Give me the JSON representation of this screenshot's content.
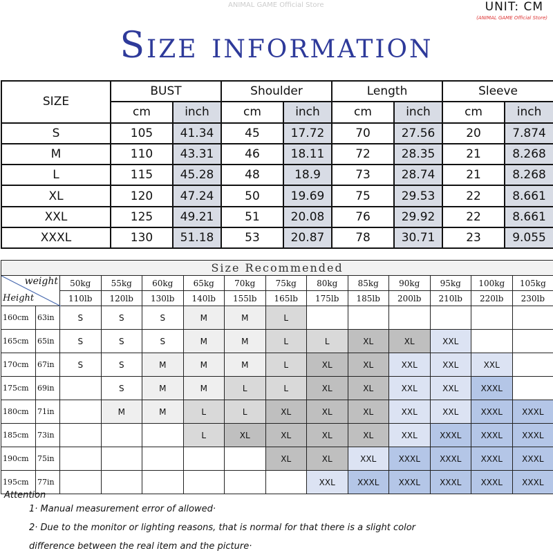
{
  "title": "Size information",
  "watermark": "ANIMAL GAME Official Store",
  "unit": "UNIT: CM",
  "store": "(ANIMAL GAME Official Store)",
  "size_table": {
    "size_header": "SIZE",
    "groups": [
      "BUST",
      "Shoulder",
      "Length",
      "Sleeve"
    ],
    "units": [
      "cm",
      "inch"
    ],
    "rows": [
      [
        "S",
        "105",
        "41.34",
        "45",
        "17.72",
        "70",
        "27.56",
        "20",
        "7.874"
      ],
      [
        "M",
        "110",
        "43.31",
        "46",
        "18.11",
        "72",
        "28.35",
        "21",
        "8.268"
      ],
      [
        "L",
        "115",
        "45.28",
        "48",
        "18.9",
        "73",
        "28.74",
        "21",
        "8.268"
      ],
      [
        "XL",
        "120",
        "47.24",
        "50",
        "19.69",
        "75",
        "29.53",
        "22",
        "8.661"
      ],
      [
        "XXL",
        "125",
        "49.21",
        "51",
        "20.08",
        "76",
        "29.92",
        "22",
        "8.661"
      ],
      [
        "XXXL",
        "130",
        "51.18",
        "53",
        "20.87",
        "78",
        "30.71",
        "23",
        "9.055"
      ]
    ]
  },
  "recommend": {
    "title": "Size Recommended",
    "weight_label": "weight",
    "height_label": "Height",
    "kg": [
      "50kg",
      "55kg",
      "60kg",
      "65kg",
      "70kg",
      "75kg",
      "80kg",
      "85kg",
      "90kg",
      "95kg",
      "100kg",
      "105kg"
    ],
    "lb": [
      "110lb",
      "120lb",
      "130lb",
      "140lb",
      "155lb",
      "165lb",
      "175lb",
      "185lb",
      "200lb",
      "210lb",
      "220lb",
      "230lb"
    ],
    "rows": [
      {
        "cm": "160cm",
        "in": "63in",
        "sizes": [
          "S",
          "S",
          "S",
          "M",
          "M",
          "L",
          "",
          "",
          "",
          "",
          "",
          ""
        ]
      },
      {
        "cm": "165cm",
        "in": "65in",
        "sizes": [
          "S",
          "S",
          "S",
          "M",
          "M",
          "L",
          "L",
          "XL",
          "XL",
          "XXL",
          "",
          ""
        ]
      },
      {
        "cm": "170cm",
        "in": "67in",
        "sizes": [
          "S",
          "S",
          "M",
          "M",
          "M",
          "L",
          "XL",
          "XL",
          "XXL",
          "XXL",
          "XXL",
          ""
        ]
      },
      {
        "cm": "175cm",
        "in": "69in",
        "sizes": [
          "",
          "S",
          "M",
          "M",
          "L",
          "L",
          "XL",
          "XL",
          "XXL",
          "XXL",
          "XXXL",
          ""
        ]
      },
      {
        "cm": "180cm",
        "in": "71in",
        "sizes": [
          "",
          "M",
          "M",
          "L",
          "L",
          "XL",
          "XL",
          "XL",
          "XXL",
          "XXL",
          "XXXL",
          "XXXL"
        ]
      },
      {
        "cm": "185cm",
        "in": "73in",
        "sizes": [
          "",
          "",
          "",
          "L",
          "XL",
          "XL",
          "XL",
          "XL",
          "XXL",
          "XXXL",
          "XXXL",
          "XXXL"
        ]
      },
      {
        "cm": "190cm",
        "in": "75in",
        "sizes": [
          "",
          "",
          "",
          "",
          "",
          "XL",
          "XL",
          "XXL",
          "XXXL",
          "XXXL",
          "XXXL",
          "XXXL"
        ]
      },
      {
        "cm": "195cm",
        "in": "77in",
        "sizes": [
          "",
          "",
          "",
          "",
          "",
          "",
          "XXL",
          "XXXL",
          "XXXL",
          "XXXL",
          "XXXL",
          "XXXL"
        ]
      }
    ],
    "colors": {
      "S": "#ffffff",
      "M": "#efefef",
      "L": "#d9d9d9",
      "XL": "#bfbfbf",
      "XXL": "#dce3f3",
      "XXXL": "#b4c6e7"
    }
  },
  "notes": {
    "heading": "Attention",
    "items": [
      "1· Manual measurement error of allowed·",
      "2·  Due to the monitor or lighting reasons, that is normal for that there is a slight color",
      "difference between the real item and the picture·"
    ]
  }
}
